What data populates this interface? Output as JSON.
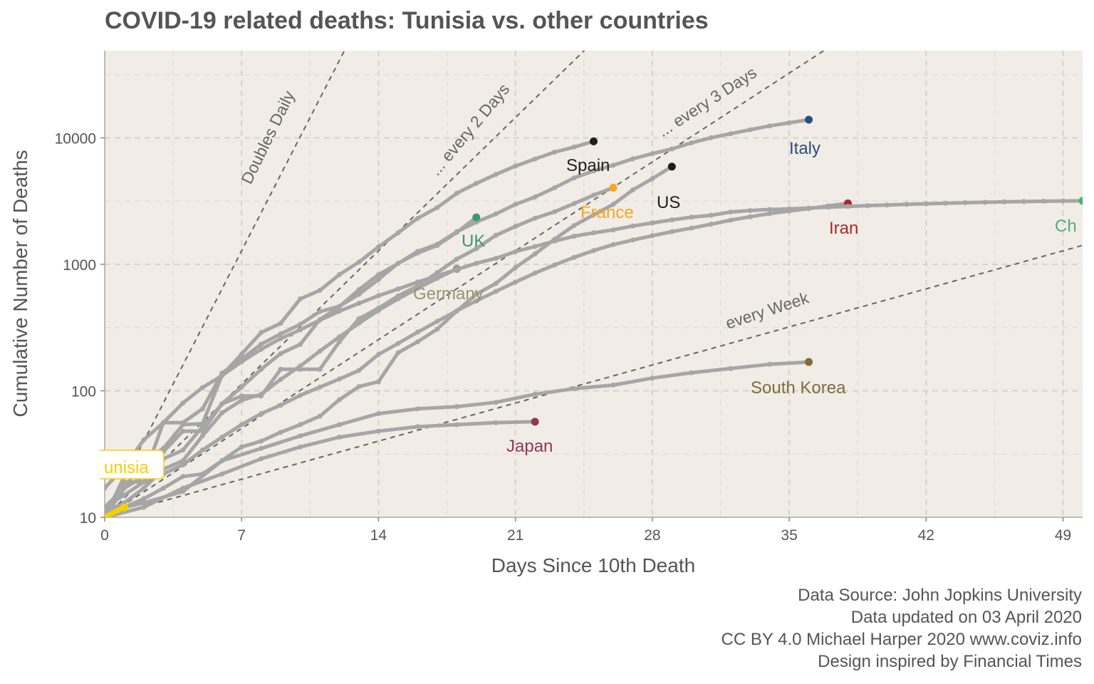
{
  "chart_data": {
    "type": "line",
    "title": "COVID-19 related deaths: Tunisia vs. other countries",
    "xlabel": "Days Since 10th Death",
    "ylabel": "Cumulative Number of Deaths",
    "x_range": [
      0,
      50
    ],
    "y_range": [
      10,
      50000
    ],
    "y_scale": "log",
    "x_ticks": [
      0,
      7,
      14,
      21,
      28,
      35,
      42,
      49
    ],
    "y_ticks": [
      10,
      100,
      1000,
      10000
    ],
    "grid": true,
    "background": "#f2ece6",
    "reference_lines": [
      {
        "label": "Doubles Daily",
        "doubling_days": 1
      },
      {
        "label": "... every 2 Days",
        "doubling_days": 2
      },
      {
        "label": "... every 3 Days",
        "doubling_days": 3
      },
      {
        "label": "every  Week",
        "doubling_days": 7
      }
    ],
    "series": [
      {
        "name": "Italy",
        "color": "#2b4e7e",
        "x": [
          0,
          1,
          2,
          3,
          4,
          5,
          6,
          7,
          8,
          9,
          10,
          11,
          12,
          13,
          14,
          15,
          16,
          17,
          18,
          19,
          20,
          21,
          22,
          23,
          24,
          25,
          26,
          27,
          28,
          29,
          30,
          31,
          32,
          33,
          34,
          35,
          36
        ],
        "y": [
          12,
          17,
          21,
          29,
          34,
          52,
          79,
          107,
          148,
          197,
          233,
          366,
          463,
          631,
          827,
          1016,
          1266,
          1441,
          1809,
          2158,
          2503,
          2978,
          3405,
          4032,
          4825,
          5476,
          6077,
          6820,
          7503,
          8165,
          9134,
          10023,
          10779,
          11591,
          12428,
          13155,
          13915
        ]
      },
      {
        "name": "Spain",
        "color": "#1e1e1e",
        "x": [
          0,
          1,
          2,
          3,
          4,
          5,
          6,
          7,
          8,
          9,
          10,
          11,
          12,
          13,
          14,
          15,
          16,
          17,
          18,
          19,
          20,
          21,
          22,
          23,
          24,
          25
        ],
        "y": [
          10,
          17,
          28,
          35,
          54,
          55,
          133,
          195,
          289,
          342,
          533,
          623,
          830,
          1043,
          1375,
          1772,
          2311,
          2808,
          3647,
          4365,
          5138,
          5982,
          6803,
          7716,
          8464,
          9387
        ]
      },
      {
        "name": "US",
        "color": "#1e1e1e",
        "x": [
          0,
          1,
          2,
          3,
          4,
          5,
          6,
          7,
          8,
          9,
          10,
          11,
          12,
          13,
          14,
          15,
          16,
          17,
          18,
          19,
          20,
          21,
          22,
          23,
          24,
          25,
          26,
          27,
          28,
          29
        ],
        "y": [
          11,
          12,
          14,
          17,
          21,
          22,
          28,
          36,
          40,
          47,
          54,
          63,
          85,
          108,
          118,
          200,
          244,
          307,
          427,
          581,
          706,
          942,
          1209,
          1581,
          2026,
          2467,
          2978,
          3873,
          4757,
          5926
        ]
      },
      {
        "name": "France",
        "color": "#f5a623",
        "x": [
          0,
          1,
          2,
          3,
          4,
          5,
          6,
          7,
          8,
          9,
          10,
          11,
          12,
          13,
          14,
          15,
          16,
          17,
          18,
          19,
          20,
          21,
          22,
          23,
          24,
          25,
          26
        ],
        "y": [
          11,
          19,
          19,
          33,
          48,
          48,
          79,
          91,
          91,
          148,
          148,
          148,
          244,
          372,
          450,
          562,
          674,
          860,
          1100,
          1331,
          1696,
          1995,
          2314,
          2606,
          3024,
          3523,
          4032
        ]
      },
      {
        "name": "UK",
        "color": "#3a9a6e",
        "x": [
          0,
          1,
          2,
          3,
          4,
          5,
          6,
          7,
          8,
          9,
          10,
          11,
          12,
          13,
          14,
          15,
          16,
          17,
          18,
          19
        ],
        "y": [
          10,
          21,
          21,
          56,
          56,
          72,
          138,
          178,
          234,
          282,
          336,
          423,
          466,
          580,
          761,
          1019,
          1228,
          1408,
          1789,
          2352
        ]
      },
      {
        "name": "Germany",
        "color": "#9b9470",
        "x": [
          0,
          1,
          2,
          3,
          4,
          5,
          6,
          7,
          8,
          9,
          10,
          11,
          12,
          13,
          14,
          15,
          16,
          17,
          18
        ],
        "y": [
          11,
          13,
          17,
          24,
          28,
          44,
          67,
          84,
          94,
          123,
          157,
          206,
          267,
          342,
          433,
          533,
          645,
          775,
          920
        ]
      },
      {
        "name": "Iran",
        "color": "#a52a2a",
        "x": [
          0,
          1,
          2,
          3,
          4,
          5,
          6,
          7,
          8,
          9,
          10,
          11,
          12,
          13,
          14,
          15,
          16,
          17,
          18,
          19,
          20,
          21,
          22,
          23,
          24,
          25,
          26,
          27,
          28,
          29,
          30,
          31,
          32,
          33,
          34,
          35,
          36,
          37,
          38
        ],
        "y": [
          12,
          15,
          19,
          22,
          26,
          34,
          43,
          54,
          66,
          77,
          92,
          107,
          124,
          145,
          194,
          237,
          291,
          354,
          429,
          514,
          611,
          724,
          853,
          988,
          1135,
          1284,
          1433,
          1556,
          1685,
          1812,
          1934,
          2077,
          2234,
          2378,
          2517,
          2640,
          2757,
          2898,
          3036
        ]
      },
      {
        "name": "China",
        "color": "#4caf7d",
        "x": [
          0,
          1,
          2,
          3,
          4,
          5,
          6,
          7,
          8,
          9,
          10,
          11,
          12,
          13,
          14,
          15,
          16,
          17,
          18,
          19,
          20,
          21,
          22,
          23,
          24,
          25,
          26,
          27,
          28,
          29,
          30,
          31,
          32,
          33,
          34,
          35,
          36,
          37,
          38,
          39,
          40,
          41,
          42,
          43,
          44,
          45,
          46,
          47,
          48,
          49,
          50
        ],
        "y": [
          17,
          25,
          41,
          56,
          80,
          106,
          132,
          170,
          213,
          259,
          304,
          362,
          426,
          492,
          565,
          638,
          724,
          813,
          910,
          1018,
          1115,
          1261,
          1383,
          1526,
          1669,
          1775,
          1873,
          2009,
          2126,
          2247,
          2360,
          2442,
          2592,
          2663,
          2715,
          2744,
          2788,
          2835,
          2870,
          2912,
          2943,
          2981,
          3013,
          3042,
          3070,
          3097,
          3119,
          3136,
          3158,
          3169,
          3176
        ]
      },
      {
        "name": "South Korea",
        "color": "#7d6e3c",
        "x": [
          0,
          2,
          4,
          6,
          8,
          10,
          12,
          14,
          16,
          18,
          20,
          22,
          24,
          26,
          28,
          30,
          32,
          34,
          36
        ],
        "y": [
          11,
          13,
          16,
          28,
          35,
          44,
          54,
          66,
          72,
          75,
          81,
          94,
          104,
          111,
          126,
          139,
          150,
          162,
          169
        ]
      },
      {
        "name": "Japan",
        "color": "#8b3a5a",
        "x": [
          0,
          2,
          4,
          6,
          8,
          10,
          12,
          14,
          16,
          18,
          20,
          22
        ],
        "y": [
          10,
          12,
          17,
          22,
          29,
          36,
          43,
          48,
          52,
          54,
          56,
          57
        ]
      },
      {
        "name": "Tunisia",
        "color": "#f5d000",
        "x": [
          0,
          0.5,
          1
        ],
        "y": [
          10,
          11,
          12
        ]
      }
    ]
  },
  "labels": {
    "italy": "Italy",
    "spain": "Spain",
    "us": "US",
    "france": "France",
    "uk": "UK",
    "germany": "Germany",
    "iran": "Iran",
    "china": "Ch",
    "south_korea": "South Korea",
    "japan": "Japan",
    "tunisia": "unisia"
  },
  "caption": [
    "Data Source: John Jopkins University",
    "Data updated on 03 April 2020",
    "CC BY 4.0 Michael Harper 2020 www.coviz.info",
    "Design inspired by Financial Times"
  ]
}
